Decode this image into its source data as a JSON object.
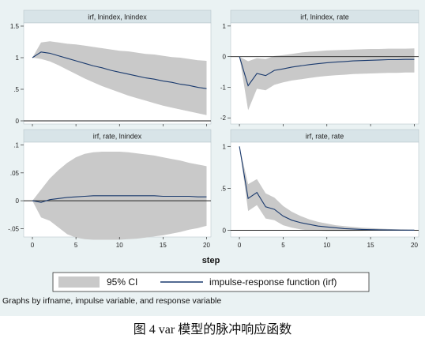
{
  "chart_data": [
    {
      "type": "area",
      "title": "irf, lnindex, lnindex",
      "x": [
        0,
        1,
        2,
        3,
        4,
        5,
        6,
        7,
        8,
        9,
        10,
        11,
        12,
        13,
        14,
        15,
        16,
        17,
        18,
        19,
        20
      ],
      "series": [
        {
          "name": "irf",
          "values": [
            1.0,
            1.09,
            1.07,
            1.03,
            0.99,
            0.95,
            0.91,
            0.87,
            0.84,
            0.8,
            0.77,
            0.74,
            0.71,
            0.68,
            0.66,
            0.63,
            0.61,
            0.58,
            0.56,
            0.53,
            0.51
          ]
        },
        {
          "name": "ci_lower",
          "values": [
            1.0,
            0.98,
            0.94,
            0.88,
            0.81,
            0.74,
            0.67,
            0.61,
            0.55,
            0.5,
            0.45,
            0.4,
            0.36,
            0.32,
            0.28,
            0.24,
            0.21,
            0.18,
            0.15,
            0.12,
            0.09
          ]
        },
        {
          "name": "ci_upper",
          "values": [
            1.0,
            1.24,
            1.26,
            1.24,
            1.22,
            1.21,
            1.19,
            1.17,
            1.15,
            1.13,
            1.11,
            1.1,
            1.08,
            1.06,
            1.05,
            1.03,
            1.01,
            1.0,
            0.98,
            0.96,
            0.95
          ]
        }
      ],
      "ylim": [
        -0.05,
        1.55
      ],
      "yticks": [
        "0",
        ".5",
        "1",
        "1.5"
      ],
      "ytick_values": [
        0,
        0.5,
        1,
        1.5
      ]
    },
    {
      "type": "area",
      "title": "irf, lnindex, rate",
      "x": [
        0,
        1,
        2,
        3,
        4,
        5,
        6,
        7,
        8,
        9,
        10,
        11,
        12,
        13,
        14,
        15,
        16,
        17,
        18,
        19,
        20
      ],
      "series": [
        {
          "name": "irf",
          "values": [
            0.0,
            -0.95,
            -0.55,
            -0.62,
            -0.45,
            -0.4,
            -0.34,
            -0.3,
            -0.26,
            -0.23,
            -0.2,
            -0.18,
            -0.16,
            -0.14,
            -0.13,
            -0.12,
            -0.11,
            -0.1,
            -0.1,
            -0.09,
            -0.09
          ]
        },
        {
          "name": "ci_lower",
          "values": [
            0.0,
            -1.75,
            -1.05,
            -1.1,
            -0.92,
            -0.84,
            -0.78,
            -0.74,
            -0.7,
            -0.66,
            -0.63,
            -0.61,
            -0.59,
            -0.57,
            -0.56,
            -0.55,
            -0.54,
            -0.53,
            -0.53,
            -0.52,
            -0.52
          ]
        },
        {
          "name": "ci_upper",
          "values": [
            0.0,
            -0.15,
            -0.05,
            -0.08,
            0.02,
            0.05,
            0.09,
            0.13,
            0.16,
            0.18,
            0.2,
            0.21,
            0.22,
            0.23,
            0.24,
            0.25,
            0.25,
            0.26,
            0.26,
            0.26,
            0.27
          ]
        }
      ],
      "ylim": [
        -2.2,
        1.1
      ],
      "yticks": [
        "-2",
        "-1",
        "0",
        "1"
      ],
      "ytick_values": [
        -2,
        -1,
        0,
        1
      ]
    },
    {
      "type": "area",
      "title": "irf, rate, lnindex",
      "x": [
        0,
        1,
        2,
        3,
        4,
        5,
        6,
        7,
        8,
        9,
        10,
        11,
        12,
        13,
        14,
        15,
        16,
        17,
        18,
        19,
        20
      ],
      "series": [
        {
          "name": "irf",
          "values": [
            0.0,
            -0.003,
            0.002,
            0.004,
            0.006,
            0.007,
            0.008,
            0.009,
            0.009,
            0.009,
            0.009,
            0.009,
            0.009,
            0.009,
            0.009,
            0.008,
            0.008,
            0.008,
            0.008,
            0.007,
            0.007
          ]
        },
        {
          "name": "ci_lower",
          "values": [
            0.0,
            -0.03,
            -0.036,
            -0.048,
            -0.06,
            -0.066,
            -0.069,
            -0.07,
            -0.07,
            -0.07,
            -0.07,
            -0.069,
            -0.068,
            -0.066,
            -0.064,
            -0.062,
            -0.059,
            -0.056,
            -0.052,
            -0.049,
            -0.045
          ]
        },
        {
          "name": "ci_upper",
          "values": [
            0.0,
            0.02,
            0.04,
            0.055,
            0.068,
            0.078,
            0.084,
            0.087,
            0.088,
            0.088,
            0.088,
            0.087,
            0.085,
            0.083,
            0.081,
            0.078,
            0.075,
            0.072,
            0.068,
            0.065,
            0.062
          ]
        }
      ],
      "ylim": [
        -0.065,
        0.105
      ],
      "yticks": [
        "-.05",
        "0",
        ".05",
        ".1"
      ],
      "ytick_values": [
        -0.05,
        0,
        0.05,
        0.1
      ]
    },
    {
      "type": "area",
      "title": "irf, rate, rate",
      "x": [
        0,
        1,
        2,
        3,
        4,
        5,
        6,
        7,
        8,
        9,
        10,
        11,
        12,
        13,
        14,
        15,
        16,
        17,
        18,
        19,
        20
      ],
      "series": [
        {
          "name": "irf",
          "values": [
            1.0,
            0.38,
            0.45,
            0.28,
            0.25,
            0.17,
            0.12,
            0.09,
            0.07,
            0.05,
            0.04,
            0.03,
            0.02,
            0.015,
            0.01,
            0.008,
            0.006,
            0.004,
            0.003,
            0.002,
            0.002
          ]
        },
        {
          "name": "ci_lower",
          "values": [
            1.0,
            0.23,
            0.3,
            0.14,
            0.12,
            0.06,
            0.03,
            0.01,
            0.0,
            -0.005,
            -0.008,
            -0.008,
            -0.008,
            -0.007,
            -0.006,
            -0.005,
            -0.005,
            -0.004,
            -0.004,
            -0.003,
            -0.003
          ]
        },
        {
          "name": "ci_upper",
          "values": [
            1.0,
            0.55,
            0.61,
            0.44,
            0.39,
            0.29,
            0.22,
            0.17,
            0.13,
            0.1,
            0.08,
            0.06,
            0.05,
            0.04,
            0.03,
            0.025,
            0.02,
            0.015,
            0.012,
            0.01,
            0.008
          ]
        }
      ],
      "ylim": [
        -0.08,
        1.05
      ],
      "yticks": [
        "0",
        ".5",
        "1"
      ],
      "ytick_values": [
        0,
        0.5,
        1
      ]
    }
  ],
  "x_axis": {
    "label": "step",
    "ticks": [
      "0",
      "5",
      "10",
      "15",
      "20"
    ],
    "tick_values": [
      0,
      5,
      10,
      15,
      20
    ],
    "range": [
      -1,
      20.5
    ]
  },
  "legend": {
    "ci_label": "95% CI",
    "irf_label": "impulse-response function (irf)"
  },
  "note": "Graphs by irfname, impulse variable, and response variable",
  "caption": "图 4 var 模型的脉冲响应函数",
  "colors": {
    "band": "#c9c9c9",
    "line": "#1a3a6e",
    "header": "#d8e4e8",
    "panel_bg": "#ffffff",
    "page_bg": "#eaf2f3"
  }
}
